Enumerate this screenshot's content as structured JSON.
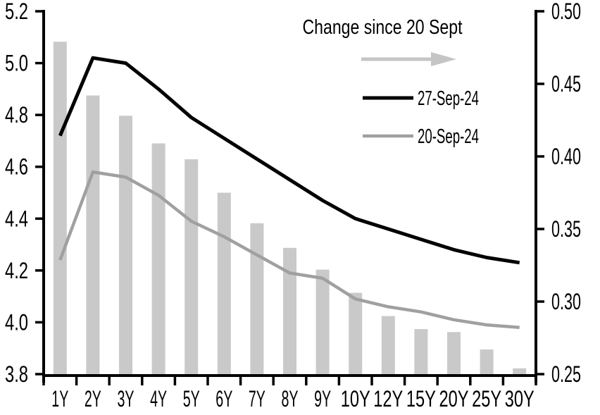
{
  "chart_data": {
    "type": "combo-bar-line",
    "categories": [
      "1Y",
      "2Y",
      "3Y",
      "4Y",
      "5Y",
      "6Y",
      "7Y",
      "8Y",
      "9Y",
      "10Y",
      "12Y",
      "15Y",
      "20Y",
      "25Y",
      "30Y"
    ],
    "series": [
      {
        "name": "Change since 20 Sept",
        "type": "bar",
        "axis": "right",
        "color": "#c9c9c9",
        "values": [
          0.479,
          0.442,
          0.428,
          0.409,
          0.398,
          0.375,
          0.354,
          0.337,
          0.322,
          0.306,
          0.29,
          0.281,
          0.279,
          0.267,
          0.254
        ]
      },
      {
        "name": "27-Sep-24",
        "type": "line",
        "axis": "left",
        "color": "#000000",
        "values": [
          4.72,
          5.02,
          5.0,
          4.9,
          4.79,
          4.71,
          4.63,
          4.55,
          4.47,
          4.4,
          4.36,
          4.32,
          4.28,
          4.25,
          4.23
        ]
      },
      {
        "name": "20-Sep-24",
        "type": "line",
        "axis": "left",
        "color": "#a0a0a0",
        "values": [
          4.24,
          4.58,
          4.56,
          4.49,
          4.39,
          4.33,
          4.26,
          4.19,
          4.17,
          4.09,
          4.06,
          4.04,
          4.01,
          3.99,
          3.98
        ]
      }
    ],
    "left_axis": {
      "min": 3.8,
      "max": 5.2,
      "step": 0.2,
      "tick_labels": [
        "3.8",
        "4.0",
        "4.2",
        "4.4",
        "4.6",
        "4.8",
        "5.0",
        "5.2"
      ]
    },
    "right_axis": {
      "min": 0.25,
      "max": 0.5,
      "step": 0.05,
      "tick_labels": [
        "0.25",
        "0.30",
        "0.35",
        "0.40",
        "0.45",
        "0.50"
      ]
    },
    "grid": false,
    "legend_position": "top-right"
  },
  "legend": {
    "title": "Change since 20 Sept",
    "arrow_color": "#c5c5c5",
    "items": [
      {
        "label": "27-Sep-24",
        "color": "#000000"
      },
      {
        "label": "20-Sep-24",
        "color": "#a0a0a0"
      }
    ]
  }
}
